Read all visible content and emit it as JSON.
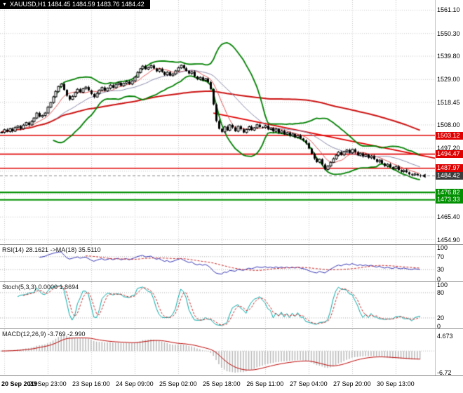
{
  "window": {
    "title": "XAUUSD,H1"
  },
  "header": {
    "symbol_info": "XAUUSD,H1 1484.45 1484.59 1483.76 1484.42",
    "symbol": "XAUUSD",
    "timeframe": "H1",
    "ohlc": {
      "open": "1484.45",
      "high": "1484.59",
      "low": "1483.76",
      "close": "1484.42"
    }
  },
  "panels": {
    "rsi_label": "RSI(14) 28.1621  ->MA(18) 35.5110",
    "stoch_label": "Stoch(5,3,3) 0.0000 1.8694",
    "macd_label": "MACD(12,26,9) -3.769 -2.990"
  },
  "colors": {
    "resistance_line": "#e00000",
    "support_line": "#009000",
    "bollinger": "#008000",
    "slow_ma": "#cc1111",
    "fast_ma": "#e05555",
    "medium_ma": "#8888aa",
    "rsi_line": "#3333b3",
    "rsi_ma_line": "#cc2222",
    "stoch_line": "#00a8a8",
    "stoch_signal_line": "#cc2222",
    "macd_signal_line": "#bb0000",
    "macd_histogram": "#b8b8b8",
    "grid": "#c8c8c8",
    "candle": "#000000",
    "current_price_tag_bg": "#3c3c3c"
  },
  "chart_data": {
    "type": "candlestick",
    "title": "XAUUSD H1 candlestick chart with Bollinger Bands, moving averages, horizontal support/resistance levels and RSI / Stochastic / MACD sub-panels",
    "x_tick_labels": [
      "20 Sep 2019",
      "20 Sep 23:00",
      "23 Sep 16:00",
      "24 Sep 09:00",
      "25 Sep 02:00",
      "25 Sep 18:00",
      "26 Sep 11:00",
      "27 Sep 04:00",
      "27 Sep 20:00",
      "30 Sep 13:00"
    ],
    "bars_per_gridline": 16,
    "main": {
      "closes": [
        1504.6,
        1505.8,
        1504.9,
        1506.3,
        1505.1,
        1506.8,
        1507.5,
        1506.2,
        1507.9,
        1509.1,
        1508.0,
        1509.6,
        1511.2,
        1513.5,
        1511.8,
        1512.4,
        1513.5,
        1516.2,
        1518.4,
        1521.0,
        1523.5,
        1525.8,
        1526.9,
        1524.2,
        1521.5,
        1519.8,
        1521.2,
        1523.0,
        1524.5,
        1523.1,
        1524.8,
        1525.5,
        1524.0,
        1522.3,
        1520.9,
        1522.6,
        1524.1,
        1525.3,
        1523.8,
        1525.0,
        1526.4,
        1525.2,
        1526.8,
        1527.5,
        1526.1,
        1527.3,
        1528.0,
        1526.9,
        1528.4,
        1530.1,
        1532.3,
        1534.0,
        1535.2,
        1533.8,
        1534.6,
        1535.5,
        1534.1,
        1532.8,
        1533.9,
        1532.5,
        1531.2,
        1532.4,
        1530.8,
        1531.6,
        1533.0,
        1534.4,
        1535.6,
        1534.2,
        1533.0,
        1531.8,
        1532.6,
        1530.4,
        1529.2,
        1530.0,
        1528.6,
        1529.4,
        1527.8,
        1524.6,
        1517.5,
        1509.8,
        1506.2,
        1504.8,
        1507.1,
        1505.5,
        1508.0,
        1506.8,
        1505.1,
        1507.4,
        1506.0,
        1504.5,
        1505.9,
        1507.2,
        1505.6,
        1506.7,
        1508.1,
        1507.0,
        1506.8,
        1507.6,
        1505.9,
        1506.5,
        1505.0,
        1506.1,
        1504.4,
        1505.2,
        1503.7,
        1504.5,
        1503.0,
        1503.8,
        1502.3,
        1503.1,
        1501.7,
        1500.8,
        1499.5,
        1497.1,
        1494.7,
        1492.4,
        1490.8,
        1492.1,
        1489.7,
        1487.4,
        1489.0,
        1490.7,
        1492.3,
        1494.0,
        1495.4,
        1494.1,
        1495.7,
        1496.4,
        1495.1,
        1496.7,
        1495.4,
        1494.0,
        1494.9,
        1493.5,
        1494.3,
        1492.8,
        1493.6,
        1492.1,
        1490.9,
        1491.7,
        1490.2,
        1489.0,
        1489.8,
        1488.5,
        1487.7,
        1488.8,
        1487.1,
        1486.4,
        1487.0,
        1486.1,
        1485.2,
        1484.8,
        1485.3,
        1484.7,
        1484.42
      ],
      "ylim": [
        1452.8,
        1565.8
      ],
      "y_ticks": [
        "1561.10",
        "1550.30",
        "1539.80",
        "1529.00",
        "1518.45",
        "1508.00",
        "1497.20",
        "1465.40",
        "1454.90"
      ],
      "y_grid_extra": [
        1486.6,
        1476.0
      ],
      "levels": [
        {
          "label": "1503.12",
          "price": 1503.12,
          "kind": "resistance"
        },
        {
          "label": "1494.47",
          "price": 1494.47,
          "kind": "resistance"
        },
        {
          "label": "1487.97",
          "price": 1487.97,
          "kind": "resistance"
        },
        {
          "label": "1476.82",
          "price": 1476.82,
          "kind": "support"
        },
        {
          "label": "1473.33",
          "price": 1473.33,
          "kind": "support"
        }
      ],
      "current_price": {
        "label": "1484.42",
        "price": 1484.42
      },
      "trendline": {
        "bar1": 78,
        "price1": 1513.5,
        "bar2": 162,
        "price2": 1492.6
      },
      "bollinger": {
        "period": 20,
        "deviation": 2
      },
      "ma_periods": {
        "fast": 8,
        "medium": 21,
        "slow": 100
      }
    },
    "rsi": {
      "period": 14,
      "ma_period": 18,
      "value": 28.1621,
      "ma_value": 35.511,
      "y_ticks": [
        100,
        70,
        30,
        0
      ],
      "level_lines": [
        70,
        30
      ]
    },
    "stoch": {
      "k_period": 5,
      "d_period": 3,
      "slowing": 3,
      "value": 0.0,
      "signal_value": 1.8694,
      "y_ticks": [
        100,
        80,
        20,
        0
      ],
      "level_lines": [
        80,
        20
      ]
    },
    "macd": {
      "fast": 12,
      "slow": 26,
      "signal": 9,
      "value": -3.769,
      "signal_value": -2.99,
      "y_ticks": [
        "4.673",
        "-6.72"
      ],
      "ylim": [
        -7.6,
        6.8
      ]
    }
  }
}
